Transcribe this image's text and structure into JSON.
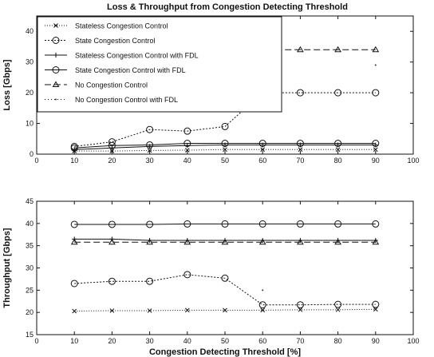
{
  "chart_data": [
    {
      "type": "line",
      "title": "Loss & Throughput from Congestion Detecting Threshold",
      "ylabel": "Loss [Gbps]",
      "xlabel": "",
      "xlim": [
        0,
        100
      ],
      "ylim": [
        0,
        45
      ],
      "xticks": [
        0,
        10,
        20,
        30,
        40,
        50,
        60,
        70,
        80,
        90,
        100
      ],
      "yticks": [
        0,
        10,
        20,
        30,
        40
      ],
      "legend_position": "top-left",
      "x": [
        10,
        20,
        30,
        40,
        50,
        60,
        70,
        80,
        90
      ],
      "series": [
        {
          "name": "Stateless Congestion Control",
          "marker": "x",
          "dash": "1,2",
          "values": [
            1.0,
            1.0,
            1.2,
            1.3,
            1.5,
            1.5,
            1.5,
            1.5,
            1.5
          ]
        },
        {
          "name": "State Congestion Control",
          "marker": "o",
          "dash": "2,2",
          "values": [
            2.5,
            4.0,
            8.0,
            7.5,
            9.0,
            20.0,
            20.0,
            20.0,
            20.0
          ]
        },
        {
          "name": "Stateless Congestion Control with FDL",
          "marker": "plus",
          "dash": "",
          "values": [
            1.5,
            2.0,
            2.5,
            2.8,
            3.0,
            3.0,
            3.0,
            3.0,
            3.0
          ]
        },
        {
          "name": "State Congestion Control with FDL",
          "marker": "o",
          "dash": "",
          "values": [
            2.0,
            2.8,
            3.0,
            3.5,
            3.5,
            3.5,
            3.5,
            3.5,
            3.5
          ]
        },
        {
          "name": "No Congestion Control",
          "marker": "triangle",
          "dash": "8,4",
          "values": [
            34.0,
            34.0,
            34.0,
            34.0,
            34.0,
            34.0,
            34.0,
            34.0,
            34.0
          ]
        },
        {
          "name": "No Congestion Control with FDL",
          "marker": "point",
          "dash": "1,3",
          "values": [
            null,
            null,
            null,
            null,
            null,
            null,
            null,
            null,
            29.0
          ]
        }
      ]
    },
    {
      "type": "line",
      "title": "",
      "ylabel": "Throughput [Gbps]",
      "xlabel": "Congestion Detecting Threshold [%]",
      "xlim": [
        0,
        100
      ],
      "ylim": [
        15,
        45
      ],
      "xticks": [
        0,
        10,
        20,
        30,
        40,
        50,
        60,
        70,
        80,
        90,
        100
      ],
      "yticks": [
        15,
        20,
        25,
        30,
        35,
        40,
        45
      ],
      "x": [
        10,
        20,
        30,
        40,
        50,
        60,
        70,
        80,
        90
      ],
      "series": [
        {
          "name": "Stateless Congestion Control",
          "marker": "x",
          "dash": "1,2",
          "values": [
            20.3,
            20.4,
            20.4,
            20.5,
            20.5,
            20.5,
            20.6,
            20.6,
            20.7
          ]
        },
        {
          "name": "State Congestion Control",
          "marker": "o",
          "dash": "2,2",
          "values": [
            26.5,
            27.0,
            27.0,
            28.5,
            27.7,
            21.7,
            21.7,
            21.8,
            21.8
          ]
        },
        {
          "name": "Stateless Congestion Control with FDL",
          "marker": "plus",
          "dash": "",
          "values": [
            36.5,
            36.5,
            36.2,
            36.2,
            36.2,
            36.2,
            36.2,
            36.2,
            36.2
          ]
        },
        {
          "name": "State Congestion Control with FDL",
          "marker": "o",
          "dash": "",
          "values": [
            39.8,
            39.8,
            39.8,
            39.9,
            39.9,
            39.9,
            39.9,
            39.9,
            39.9
          ]
        },
        {
          "name": "No Congestion Control",
          "marker": "triangle",
          "dash": "8,4",
          "values": [
            35.8,
            35.8,
            35.8,
            35.8,
            35.8,
            35.8,
            35.8,
            35.8,
            35.8
          ]
        },
        {
          "name": "No Congestion Control with FDL",
          "marker": "point",
          "dash": "1,3",
          "values": [
            null,
            null,
            null,
            null,
            null,
            25.0,
            null,
            null,
            null
          ]
        }
      ]
    }
  ]
}
